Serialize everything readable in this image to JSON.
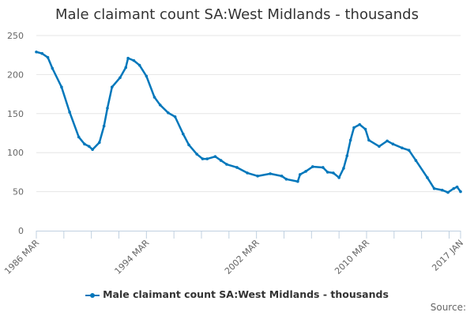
{
  "chart_data": {
    "type": "line",
    "title": "Male claimant count SA:West Midlands - thousands",
    "xlabel": "",
    "ylabel": "",
    "ylim": [
      0,
      250
    ],
    "yticks": [
      "0",
      "50",
      "100",
      "150",
      "200",
      "250"
    ],
    "xlim": [
      "1986-03",
      "2017-01"
    ],
    "xtick_labels": [
      {
        "date": "1986-03",
        "label": "1986 MAR"
      },
      {
        "date": "1994-03",
        "label": "1994 MAR"
      },
      {
        "date": "2002-03",
        "label": "2002 MAR"
      },
      {
        "date": "2010-03",
        "label": "2010 MAR"
      },
      {
        "date": "2017-01",
        "label": "2017 JAN"
      }
    ],
    "grid": true,
    "legend_position": "bottom",
    "color": "#0077bb",
    "series": [
      {
        "name": "Male claimant count SA:West Midlands - thousands",
        "x": [
          "1986-03",
          "1986-08",
          "1987-01",
          "1987-05",
          "1988-01",
          "1988-08",
          "1989-04",
          "1989-09",
          "1990-01",
          "1990-04",
          "1990-10",
          "1991-02",
          "1991-05",
          "1991-09",
          "1992-04",
          "1992-09",
          "1992-11",
          "1993-04",
          "1993-09",
          "1994-03",
          "1994-10",
          "1995-03",
          "1995-10",
          "1996-04",
          "1996-11",
          "1997-04",
          "1997-11",
          "1998-04",
          "1998-08",
          "1999-03",
          "1999-08",
          "2000-01",
          "2000-10",
          "2001-07",
          "2002-04",
          "2003-03",
          "2004-01",
          "2004-05",
          "2005-03",
          "2005-05",
          "2005-10",
          "2006-04",
          "2007-01",
          "2007-05",
          "2007-10",
          "2008-03",
          "2008-07",
          "2008-10",
          "2009-01",
          "2009-04",
          "2009-09",
          "2010-02",
          "2010-05",
          "2011-02",
          "2011-09",
          "2012-02",
          "2012-10",
          "2013-04",
          "2013-10",
          "2014-08",
          "2015-02",
          "2015-09",
          "2016-02",
          "2016-07",
          "2016-10",
          "2017-01"
        ],
        "values": [
          229,
          227,
          222,
          208,
          184,
          152,
          120,
          111,
          108,
          104,
          113,
          134,
          157,
          184,
          196,
          209,
          221,
          218,
          212,
          198,
          171,
          161,
          151,
          146,
          124,
          110,
          98,
          92,
          92,
          95,
          90,
          85,
          81,
          74,
          70,
          73,
          70,
          66,
          63,
          72,
          76,
          82,
          81,
          75,
          74,
          68,
          80,
          96,
          116,
          132,
          136,
          130,
          116,
          108,
          115,
          111,
          106,
          103,
          90,
          68,
          54,
          52,
          49,
          54,
          56,
          50
        ]
      }
    ]
  },
  "source_label": "Source:"
}
